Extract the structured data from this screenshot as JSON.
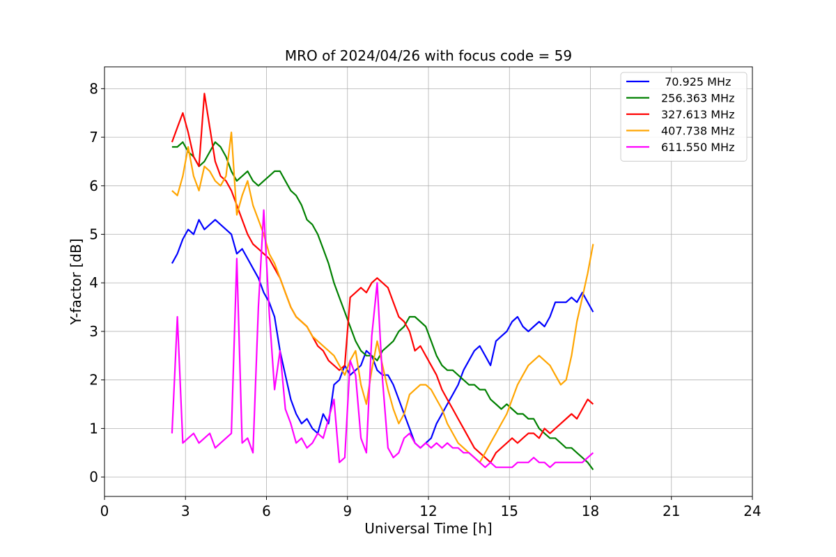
{
  "chart_data": {
    "type": "line",
    "title": "MRO of 2024/04/26 with focus code = 59",
    "xlabel": "Universal Time [h]",
    "ylabel": "Y-factor [dB]",
    "xlim": [
      0,
      24
    ],
    "ylim": [
      -0.4,
      8.45
    ],
    "xticks": [
      0,
      3,
      6,
      9,
      12,
      15,
      18,
      21,
      24
    ],
    "yticks": [
      0,
      1,
      2,
      3,
      4,
      5,
      6,
      7,
      8
    ],
    "grid": true,
    "legend_position": "top-right",
    "series": [
      {
        "name": " 70.925 MHz",
        "color": "#0000ff",
        "x": [
          2.5,
          2.7,
          2.9,
          3.1,
          3.3,
          3.5,
          3.7,
          3.9,
          4.1,
          4.3,
          4.5,
          4.7,
          4.9,
          5.1,
          5.3,
          5.5,
          5.7,
          5.9,
          6.1,
          6.3,
          6.5,
          6.7,
          6.9,
          7.1,
          7.3,
          7.5,
          7.7,
          7.9,
          8.1,
          8.3,
          8.5,
          8.7,
          8.9,
          9.1,
          9.3,
          9.5,
          9.7,
          9.9,
          10.1,
          10.3,
          10.5,
          10.7,
          10.9,
          11.1,
          11.3,
          11.5,
          11.7,
          11.9,
          12.1,
          12.3,
          12.5,
          12.7,
          12.9,
          13.1,
          13.3,
          13.5,
          13.7,
          13.9,
          14.1,
          14.3,
          14.5,
          14.7,
          14.9,
          15.1,
          15.3,
          15.5,
          15.7,
          15.9,
          16.1,
          16.3,
          16.5,
          16.7,
          16.9,
          17.1,
          17.3,
          17.5,
          17.7,
          17.9,
          18.1
        ],
        "y": [
          4.4,
          4.6,
          4.9,
          5.1,
          5.0,
          5.3,
          5.1,
          5.2,
          5.3,
          5.2,
          5.1,
          5.0,
          4.6,
          4.7,
          4.5,
          4.3,
          4.1,
          3.8,
          3.6,
          3.3,
          2.6,
          2.1,
          1.6,
          1.3,
          1.1,
          1.2,
          1.0,
          0.9,
          1.3,
          1.1,
          1.9,
          2.0,
          2.3,
          2.1,
          2.2,
          2.3,
          2.6,
          2.5,
          2.2,
          2.1,
          2.1,
          1.9,
          1.6,
          1.3,
          1.0,
          0.7,
          0.6,
          0.7,
          0.8,
          1.1,
          1.3,
          1.5,
          1.7,
          1.9,
          2.2,
          2.4,
          2.6,
          2.7,
          2.5,
          2.3,
          2.8,
          2.9,
          3.0,
          3.2,
          3.3,
          3.1,
          3.0,
          3.1,
          3.2,
          3.1,
          3.3,
          3.6,
          3.6,
          3.6,
          3.7,
          3.6,
          3.8,
          3.6,
          3.4
        ]
      },
      {
        "name": "256.363 MHz",
        "color": "#008000",
        "x": [
          2.5,
          2.7,
          2.9,
          3.1,
          3.3,
          3.5,
          3.7,
          3.9,
          4.1,
          4.3,
          4.5,
          4.7,
          4.9,
          5.1,
          5.3,
          5.5,
          5.7,
          5.9,
          6.1,
          6.3,
          6.5,
          6.7,
          6.9,
          7.1,
          7.3,
          7.5,
          7.7,
          7.9,
          8.1,
          8.3,
          8.5,
          8.7,
          8.9,
          9.1,
          9.3,
          9.5,
          9.7,
          9.9,
          10.1,
          10.3,
          10.5,
          10.7,
          10.9,
          11.1,
          11.3,
          11.5,
          11.7,
          11.9,
          12.1,
          12.3,
          12.5,
          12.7,
          12.9,
          13.1,
          13.3,
          13.5,
          13.7,
          13.9,
          14.1,
          14.3,
          14.5,
          14.7,
          14.9,
          15.1,
          15.3,
          15.5,
          15.7,
          15.9,
          16.1,
          16.3,
          16.5,
          16.7,
          16.9,
          17.1,
          17.3,
          17.5,
          17.7,
          17.9,
          18.1
        ],
        "y": [
          6.8,
          6.8,
          6.9,
          6.7,
          6.6,
          6.4,
          6.5,
          6.7,
          6.9,
          6.8,
          6.6,
          6.3,
          6.1,
          6.2,
          6.3,
          6.1,
          6.0,
          6.1,
          6.2,
          6.3,
          6.3,
          6.1,
          5.9,
          5.8,
          5.6,
          5.3,
          5.2,
          5.0,
          4.7,
          4.4,
          4.0,
          3.7,
          3.4,
          3.1,
          2.8,
          2.6,
          2.5,
          2.5,
          2.4,
          2.6,
          2.7,
          2.8,
          3.0,
          3.1,
          3.3,
          3.3,
          3.2,
          3.1,
          2.8,
          2.5,
          2.3,
          2.2,
          2.2,
          2.1,
          2.0,
          1.9,
          1.9,
          1.8,
          1.8,
          1.6,
          1.5,
          1.4,
          1.5,
          1.4,
          1.3,
          1.3,
          1.2,
          1.2,
          1.0,
          0.9,
          0.8,
          0.8,
          0.7,
          0.6,
          0.6,
          0.5,
          0.4,
          0.3,
          0.15
        ]
      },
      {
        "name": "327.613 MHz",
        "color": "#ff0000",
        "x": [
          2.5,
          2.7,
          2.9,
          3.1,
          3.3,
          3.5,
          3.7,
          3.9,
          4.1,
          4.3,
          4.5,
          4.7,
          4.9,
          5.1,
          5.3,
          5.5,
          5.7,
          5.9,
          6.1,
          6.3,
          6.5,
          6.7,
          6.9,
          7.1,
          7.3,
          7.5,
          7.7,
          7.9,
          8.1,
          8.3,
          8.5,
          8.7,
          8.9,
          9.1,
          9.3,
          9.5,
          9.7,
          9.9,
          10.1,
          10.3,
          10.5,
          10.7,
          10.9,
          11.1,
          11.3,
          11.5,
          11.7,
          11.9,
          12.1,
          12.3,
          12.5,
          12.7,
          12.9,
          13.1,
          13.3,
          13.5,
          13.7,
          13.9,
          14.1,
          14.3,
          14.5,
          14.7,
          14.9,
          15.1,
          15.3,
          15.5,
          15.7,
          15.9,
          16.1,
          16.3,
          16.5,
          16.7,
          16.9,
          17.1,
          17.3,
          17.5,
          17.7,
          17.9,
          18.1
        ],
        "y": [
          6.9,
          7.2,
          7.5,
          7.1,
          6.6,
          6.4,
          7.9,
          7.2,
          6.5,
          6.2,
          6.1,
          5.9,
          5.6,
          5.3,
          5.0,
          4.8,
          4.7,
          4.6,
          4.5,
          4.3,
          4.1,
          3.8,
          3.5,
          3.3,
          3.2,
          3.1,
          2.9,
          2.7,
          2.6,
          2.4,
          2.3,
          2.2,
          2.3,
          3.7,
          3.8,
          3.9,
          3.8,
          4.0,
          4.1,
          4.0,
          3.9,
          3.6,
          3.3,
          3.2,
          3.0,
          2.6,
          2.7,
          2.5,
          2.3,
          2.1,
          1.8,
          1.6,
          1.4,
          1.2,
          1.0,
          0.8,
          0.6,
          0.5,
          0.4,
          0.3,
          0.5,
          0.6,
          0.7,
          0.8,
          0.7,
          0.8,
          0.9,
          0.9,
          0.8,
          1.0,
          0.9,
          1.0,
          1.1,
          1.2,
          1.3,
          1.2,
          1.4,
          1.6,
          1.5
        ]
      },
      {
        "name": "407.738 MHz",
        "color": "#ffa500",
        "x": [
          2.5,
          2.7,
          2.9,
          3.1,
          3.3,
          3.5,
          3.7,
          3.9,
          4.1,
          4.3,
          4.5,
          4.7,
          4.9,
          5.1,
          5.3,
          5.5,
          5.7,
          5.9,
          6.1,
          6.3,
          6.5,
          6.7,
          6.9,
          7.1,
          7.3,
          7.5,
          7.7,
          7.9,
          8.1,
          8.3,
          8.5,
          8.7,
          8.9,
          9.1,
          9.3,
          9.5,
          9.7,
          9.9,
          10.1,
          10.3,
          10.5,
          10.7,
          10.9,
          11.1,
          11.3,
          11.5,
          11.7,
          11.9,
          12.1,
          12.3,
          12.5,
          12.7,
          12.9,
          13.1,
          13.3,
          13.5,
          13.7,
          13.9,
          14.1,
          14.3,
          14.5,
          14.7,
          14.9,
          15.1,
          15.3,
          15.5,
          15.7,
          15.9,
          16.1,
          16.3,
          16.5,
          16.7,
          16.9,
          17.1,
          17.3,
          17.5,
          17.7,
          17.9,
          18.1
        ],
        "y": [
          5.9,
          5.8,
          6.2,
          6.8,
          6.2,
          5.9,
          6.4,
          6.3,
          6.1,
          6.0,
          6.2,
          7.1,
          5.4,
          5.8,
          6.1,
          5.6,
          5.3,
          5.0,
          4.6,
          4.4,
          4.1,
          3.8,
          3.5,
          3.3,
          3.2,
          3.1,
          2.9,
          2.8,
          2.7,
          2.6,
          2.5,
          2.3,
          2.1,
          2.4,
          2.6,
          1.9,
          1.5,
          2.2,
          2.8,
          2.3,
          1.8,
          1.4,
          1.1,
          1.3,
          1.7,
          1.8,
          1.9,
          1.9,
          1.8,
          1.6,
          1.4,
          1.1,
          0.9,
          0.7,
          0.6,
          0.5,
          0.4,
          0.3,
          0.5,
          0.7,
          0.9,
          1.1,
          1.3,
          1.6,
          1.9,
          2.1,
          2.3,
          2.4,
          2.5,
          2.4,
          2.3,
          2.1,
          1.9,
          2.0,
          2.5,
          3.2,
          3.7,
          4.2,
          4.8
        ]
      },
      {
        "name": "611.550 MHz",
        "color": "#ff00ff",
        "x": [
          2.5,
          2.7,
          2.9,
          3.1,
          3.3,
          3.5,
          3.7,
          3.9,
          4.1,
          4.3,
          4.5,
          4.7,
          4.9,
          5.1,
          5.3,
          5.5,
          5.7,
          5.9,
          6.1,
          6.3,
          6.5,
          6.7,
          6.9,
          7.1,
          7.3,
          7.5,
          7.7,
          7.9,
          8.1,
          8.3,
          8.5,
          8.7,
          8.9,
          9.1,
          9.3,
          9.5,
          9.7,
          9.9,
          10.1,
          10.3,
          10.5,
          10.7,
          10.9,
          11.1,
          11.3,
          11.5,
          11.7,
          11.9,
          12.1,
          12.3,
          12.5,
          12.7,
          12.9,
          13.1,
          13.3,
          13.5,
          13.7,
          13.9,
          14.1,
          14.3,
          14.5,
          14.7,
          14.9,
          15.1,
          15.3,
          15.5,
          15.7,
          15.9,
          16.1,
          16.3,
          16.5,
          16.7,
          16.9,
          17.1,
          17.3,
          17.5,
          17.7,
          17.9,
          18.1
        ],
        "y": [
          0.9,
          3.3,
          0.7,
          0.8,
          0.9,
          0.7,
          0.8,
          0.9,
          0.6,
          0.7,
          0.8,
          0.9,
          4.5,
          0.7,
          0.8,
          0.5,
          3.5,
          5.5,
          3.4,
          1.8,
          2.6,
          1.4,
          1.1,
          0.7,
          0.8,
          0.6,
          0.7,
          0.9,
          0.8,
          1.2,
          1.6,
          0.3,
          0.4,
          2.4,
          2.1,
          0.8,
          0.5,
          2.9,
          4.0,
          2.0,
          0.6,
          0.4,
          0.5,
          0.8,
          0.9,
          0.7,
          0.6,
          0.7,
          0.6,
          0.7,
          0.6,
          0.7,
          0.6,
          0.6,
          0.5,
          0.5,
          0.4,
          0.3,
          0.2,
          0.3,
          0.2,
          0.2,
          0.2,
          0.2,
          0.3,
          0.3,
          0.3,
          0.4,
          0.3,
          0.3,
          0.2,
          0.3,
          0.3,
          0.3,
          0.3,
          0.3,
          0.3,
          0.4,
          0.5
        ]
      }
    ]
  }
}
